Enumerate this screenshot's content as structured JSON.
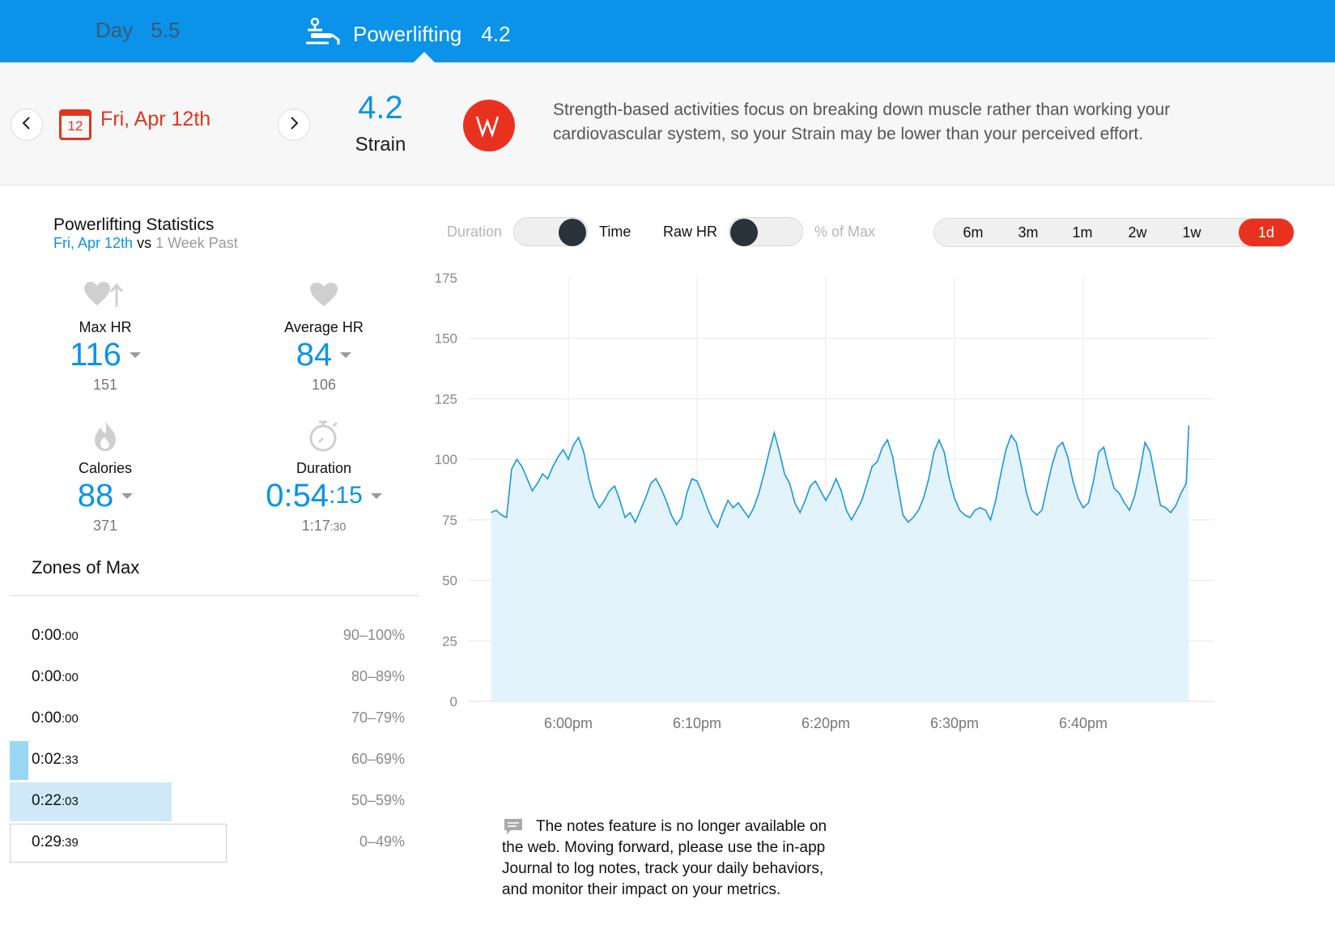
{
  "tabs": {
    "day": {
      "label": "Day",
      "value": "5.5"
    },
    "activity": {
      "label": "Powerlifting",
      "value": "4.2",
      "icon": "powerlifting-icon"
    }
  },
  "header": {
    "calendar_day": "12",
    "date": "Fri, Apr 12th",
    "strain_value": "4.2",
    "strain_label": "Strain",
    "badge_icon": "strain-logo-icon",
    "note": "Strength-based activities focus on breaking down muscle rather than working your cardiovascular system, so your Strain may be lower than your perceived effort."
  },
  "stats": {
    "title": "Powerlifting Statistics",
    "date": "Fri, Apr 12th",
    "vs": "vs",
    "period": "1 Week Past",
    "max_hr": {
      "label": "Max HR",
      "value": "116",
      "compare": "151",
      "icon": "heart-up-icon"
    },
    "avg_hr": {
      "label": "Average HR",
      "value": "84",
      "compare": "106",
      "icon": "heart-icon"
    },
    "calories": {
      "label": "Calories",
      "value": "88",
      "compare": "371",
      "icon": "flame-icon"
    },
    "duration": {
      "label": "Duration",
      "value_main": "0:54",
      "value_sec": ":15",
      "compare_main": "1:17",
      "compare_sec": ":30",
      "icon": "stopwatch-icon"
    }
  },
  "zones": {
    "title": "Zones of Max",
    "rows": [
      {
        "time_main": "0:00",
        "time_sec": ":00",
        "range": "90–100%",
        "fraction": 0
      },
      {
        "time_main": "0:00",
        "time_sec": ":00",
        "range": "80–89%",
        "fraction": 0
      },
      {
        "time_main": "0:00",
        "time_sec": ":00",
        "range": "70–79%",
        "fraction": 0
      },
      {
        "time_main": "0:02",
        "time_sec": ":33",
        "range": "60–69%",
        "fraction": 0.047
      },
      {
        "time_main": "0:22",
        "time_sec": ":03",
        "range": "50–59%",
        "fraction": 0.41
      },
      {
        "time_main": "0:29",
        "time_sec": ":39",
        "range": "0–49%",
        "fraction": 0.55
      }
    ],
    "colors": [
      "#9ad6f4",
      "#9ad6f4",
      "#9ad6f4",
      "#9ad6f4",
      "#cfe9f9",
      "#ffffff"
    ]
  },
  "controls": {
    "duration_label": "Duration",
    "time_label": "Time",
    "raw_hr_label": "Raw HR",
    "pct_max_label": "% of Max",
    "ranges": [
      "6m",
      "3m",
      "1m",
      "2w",
      "1w",
      "1d"
    ],
    "active_range": "1d"
  },
  "chart_data": {
    "type": "area",
    "title": "",
    "xlabel": "",
    "ylabel": "",
    "ylim": [
      0,
      175
    ],
    "yticks": [
      0,
      25,
      50,
      75,
      100,
      125,
      150,
      175
    ],
    "xticks": [
      "6:00pm",
      "6:10pm",
      "6:20pm",
      "6:30pm",
      "6:40pm"
    ],
    "xtick_minutes": [
      0,
      10,
      20,
      30,
      40
    ],
    "xlim_minutes": [
      -6,
      48.2
    ],
    "gridlines": true,
    "series": [
      {
        "x_minutes": [
          -6.0,
          -5.6,
          -5.2,
          -4.8,
          -4.4,
          -4.0,
          -3.6,
          -3.2,
          -2.8,
          -2.4,
          -2.0,
          -1.6,
          -1.2,
          -0.8,
          -0.4,
          0.0,
          0.4,
          0.8,
          1.2,
          1.6,
          2.0,
          2.4,
          2.8,
          3.2,
          3.6,
          4.0,
          4.4,
          4.8,
          5.2,
          5.6,
          6.0,
          6.4,
          6.8,
          7.2,
          7.6,
          8.0,
          8.4,
          8.8,
          9.2,
          9.6,
          10.0,
          10.4,
          10.8,
          11.2,
          11.6,
          12.0,
          12.4,
          12.8,
          13.2,
          13.6,
          14.0,
          14.4,
          14.8,
          15.2,
          15.6,
          16.0,
          16.4,
          16.8,
          17.2,
          17.6,
          18.0,
          18.4,
          18.8,
          19.2,
          19.6,
          20.0,
          20.4,
          20.8,
          21.2,
          21.6,
          22.0,
          22.4,
          22.8,
          23.2,
          23.6,
          24.0,
          24.4,
          24.8,
          25.2,
          25.6,
          26.0,
          26.4,
          26.8,
          27.2,
          27.6,
          28.0,
          28.4,
          28.8,
          29.2,
          29.6,
          30.0,
          30.4,
          30.8,
          31.2,
          31.6,
          32.0,
          32.4,
          32.8,
          33.2,
          33.6,
          34.0,
          34.4,
          34.8,
          35.2,
          35.6,
          36.0,
          36.4,
          36.8,
          37.2,
          37.6,
          38.0,
          38.4,
          38.8,
          39.2,
          39.6,
          40.0,
          40.4,
          40.8,
          41.2,
          41.6,
          42.0,
          42.4,
          42.8,
          43.2,
          43.6,
          44.0,
          44.4,
          44.8,
          45.2,
          45.6,
          46.0,
          46.4,
          46.8,
          47.2,
          47.6,
          48.0,
          48.2
        ],
        "values": [
          78,
          79,
          77,
          76,
          96,
          100,
          97,
          92,
          87,
          90,
          94,
          92,
          97,
          101,
          104,
          100,
          106,
          109,
          103,
          92,
          84,
          80,
          83,
          87,
          89,
          83,
          76,
          78,
          74,
          79,
          84,
          90,
          92,
          88,
          83,
          77,
          73,
          76,
          86,
          92,
          91,
          86,
          80,
          75,
          72,
          78,
          83,
          80,
          82,
          79,
          76,
          80,
          86,
          94,
          103,
          111,
          103,
          94,
          90,
          82,
          78,
          83,
          89,
          91,
          87,
          83,
          87,
          92,
          87,
          79,
          75,
          79,
          83,
          90,
          97,
          99,
          105,
          108,
          101,
          89,
          77,
          74,
          76,
          79,
          84,
          92,
          103,
          108,
          103,
          92,
          84,
          79,
          77,
          76,
          79,
          80,
          79,
          75,
          83,
          94,
          104,
          110,
          107,
          97,
          86,
          79,
          77,
          79,
          89,
          98,
          105,
          107,
          101,
          91,
          84,
          80,
          82,
          91,
          103,
          105,
          96,
          88,
          86,
          82,
          79,
          85,
          95,
          107,
          103,
          92,
          81,
          80,
          78,
          81,
          86,
          90,
          114
        ]
      }
    ]
  },
  "notes": {
    "icon": "comment-icon",
    "text": "The notes feature is no longer available on the web. Moving forward, please use the in-app Journal to log notes, track your daily behaviors, and monitor their impact on your metrics."
  }
}
